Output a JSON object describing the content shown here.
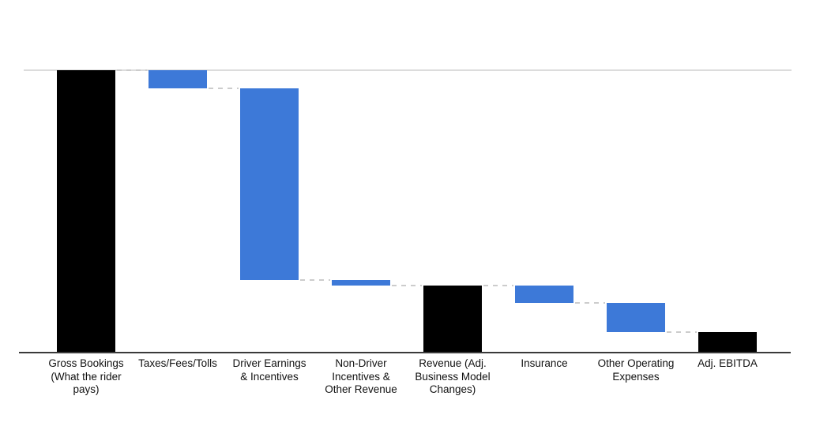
{
  "chart_data": {
    "type": "bar",
    "subtype": "waterfall",
    "title": "",
    "legend": "none",
    "value_note": "No numeric axis or data labels are shown; values estimated from bar heights as percent of the first bar (Gross Bookings = 100).",
    "axes": {
      "y_axis_labels_visible": false,
      "x_axis_labels_visible": true,
      "ylim": [
        0,
        100
      ],
      "top_baseline_gridline_at": 100,
      "x_axis_line": true
    },
    "categories": [
      "Gross Bookings (What the rider pays)",
      "Taxes/Fees/Tolls",
      "Driver Earnings & Incentives",
      "Non-Driver Incentives & Other Revenue",
      "Revenue (Adj. Business Model Changes)",
      "Insurance",
      "Other Operating Expenses",
      "Adj. EBITDA"
    ],
    "bars": [
      {
        "id": "gross-bookings",
        "label": "Gross Bookings (What the rider pays)",
        "label_lines": [
          "Gross Bookings",
          "(What the rider",
          "pays)"
        ],
        "value": 100,
        "kind": "total"
      },
      {
        "id": "taxes-fees-tolls",
        "label": "Taxes/Fees/Tolls",
        "label_lines": [
          "Taxes/Fees/Tolls"
        ],
        "value": -6.5,
        "kind": "flow"
      },
      {
        "id": "driver-earnings-incentives",
        "label": "Driver Earnings & Incentives",
        "label_lines": [
          "Driver Earnings",
          "& Incentives"
        ],
        "value": -68,
        "kind": "flow"
      },
      {
        "id": "non-driver-incentives-other-revenue",
        "label": "Non-Driver Incentives & Other Revenue",
        "label_lines": [
          "Non-Driver",
          "Incentives &",
          "Other Revenue"
        ],
        "value": -2,
        "kind": "flow"
      },
      {
        "id": "revenue-adj-business-model-changes",
        "label": "Revenue (Adj. Business Model Changes)",
        "label_lines": [
          "Revenue (Adj.",
          "Business Model",
          "Changes)"
        ],
        "value": 23.5,
        "kind": "total"
      },
      {
        "id": "insurance",
        "label": "Insurance",
        "label_lines": [
          "Insurance"
        ],
        "value": -6,
        "kind": "flow"
      },
      {
        "id": "other-operating-expenses",
        "label": "Other Operating Expenses",
        "label_lines": [
          "Other Operating",
          "Expenses"
        ],
        "value": -10.5,
        "kind": "flow"
      },
      {
        "id": "adj-ebitda",
        "label": "Adj. EBITDA",
        "label_lines": [
          "Adj. EBITDA"
        ],
        "value": 7,
        "kind": "total"
      }
    ],
    "colors": {
      "total_bar": "#000000",
      "flow_bar": "#3d79d8",
      "connector": "#cccccc",
      "baseline_gridline": "#dcdcdc",
      "axis_line": "#3a3a3a",
      "label_text": "#111111",
      "background": "#ffffff"
    }
  }
}
